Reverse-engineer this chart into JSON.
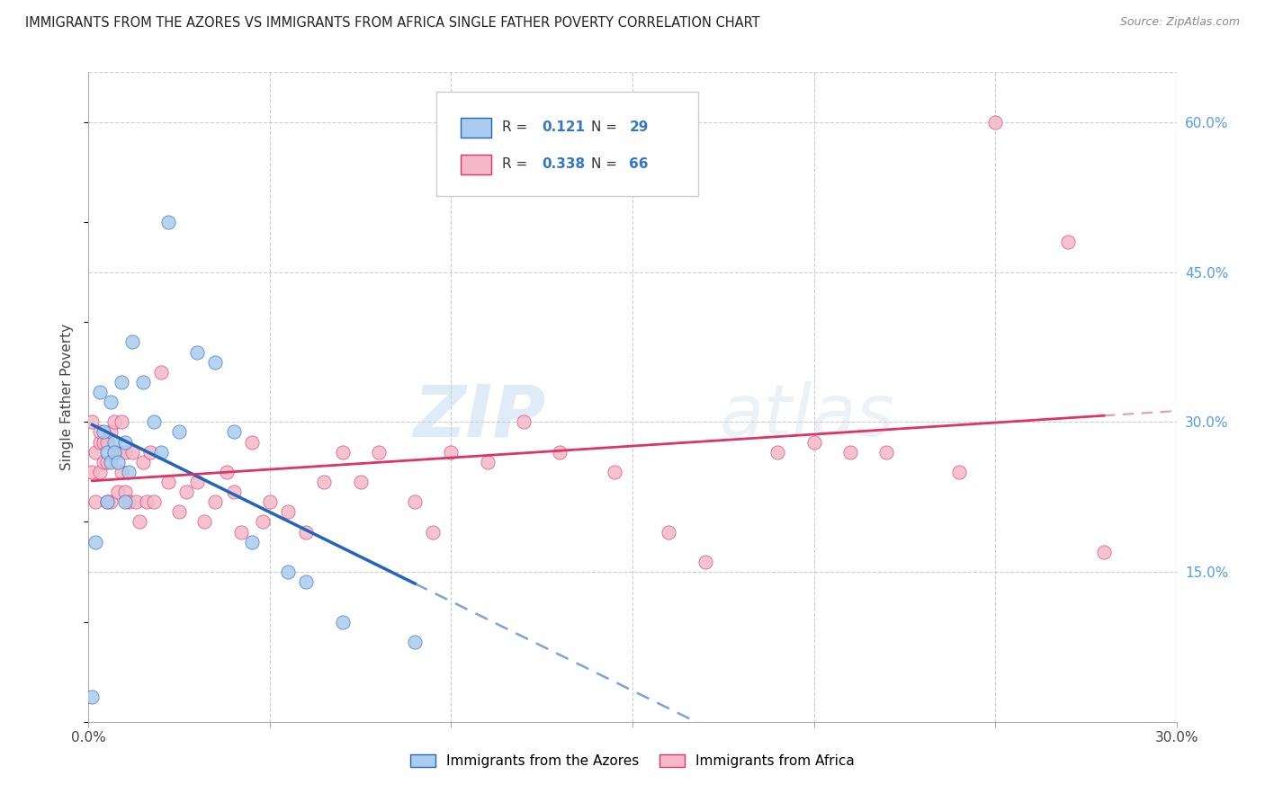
{
  "title": "IMMIGRANTS FROM THE AZORES VS IMMIGRANTS FROM AFRICA SINGLE FATHER POVERTY CORRELATION CHART",
  "source": "Source: ZipAtlas.com",
  "ylabel": "Single Father Poverty",
  "xlim": [
    0.0,
    0.3
  ],
  "ylim": [
    0.0,
    0.65
  ],
  "xticks": [
    0.0,
    0.05,
    0.1,
    0.15,
    0.2,
    0.25,
    0.3
  ],
  "xtick_labels": [
    "0.0%",
    "",
    "",
    "",
    "",
    "",
    "30.0%"
  ],
  "yticks_right": [
    0.15,
    0.3,
    0.45,
    0.6
  ],
  "ytick_labels_right": [
    "15.0%",
    "30.0%",
    "45.0%",
    "60.0%"
  ],
  "azores_scatter_color": "#aaccee",
  "africa_scatter_color": "#f4b8c8",
  "azores_line_color": "#2266bb",
  "africa_line_color": "#dd3366",
  "R_azores": 0.121,
  "N_azores": 29,
  "R_africa": 0.338,
  "N_africa": 66,
  "legend_label_azores": "Immigrants from the Azores",
  "legend_label_africa": "Immigrants from Africa",
  "watermark": "ZIPatlas",
  "azores_x": [
    0.001,
    0.002,
    0.003,
    0.004,
    0.005,
    0.005,
    0.006,
    0.006,
    0.007,
    0.007,
    0.008,
    0.009,
    0.01,
    0.01,
    0.011,
    0.012,
    0.015,
    0.018,
    0.02,
    0.022,
    0.025,
    0.03,
    0.035,
    0.04,
    0.045,
    0.055,
    0.06,
    0.07,
    0.09
  ],
  "azores_y": [
    0.025,
    0.18,
    0.33,
    0.29,
    0.22,
    0.27,
    0.26,
    0.32,
    0.28,
    0.27,
    0.26,
    0.34,
    0.28,
    0.22,
    0.25,
    0.38,
    0.34,
    0.3,
    0.27,
    0.5,
    0.29,
    0.37,
    0.36,
    0.29,
    0.18,
    0.15,
    0.14,
    0.1,
    0.08
  ],
  "africa_x": [
    0.001,
    0.001,
    0.002,
    0.002,
    0.003,
    0.003,
    0.003,
    0.004,
    0.004,
    0.005,
    0.005,
    0.005,
    0.006,
    0.006,
    0.007,
    0.007,
    0.008,
    0.008,
    0.009,
    0.009,
    0.01,
    0.01,
    0.011,
    0.012,
    0.013,
    0.014,
    0.015,
    0.016,
    0.017,
    0.018,
    0.02,
    0.022,
    0.025,
    0.027,
    0.03,
    0.032,
    0.035,
    0.038,
    0.04,
    0.042,
    0.045,
    0.048,
    0.05,
    0.055,
    0.06,
    0.065,
    0.07,
    0.075,
    0.08,
    0.09,
    0.095,
    0.1,
    0.11,
    0.12,
    0.13,
    0.145,
    0.16,
    0.17,
    0.19,
    0.2,
    0.21,
    0.22,
    0.24,
    0.25,
    0.27,
    0.28
  ],
  "africa_y": [
    0.25,
    0.3,
    0.22,
    0.27,
    0.25,
    0.28,
    0.29,
    0.26,
    0.28,
    0.22,
    0.28,
    0.26,
    0.22,
    0.29,
    0.27,
    0.3,
    0.23,
    0.27,
    0.25,
    0.3,
    0.27,
    0.23,
    0.22,
    0.27,
    0.22,
    0.2,
    0.26,
    0.22,
    0.27,
    0.22,
    0.35,
    0.24,
    0.21,
    0.23,
    0.24,
    0.2,
    0.22,
    0.25,
    0.23,
    0.19,
    0.28,
    0.2,
    0.22,
    0.21,
    0.19,
    0.24,
    0.27,
    0.24,
    0.27,
    0.22,
    0.19,
    0.27,
    0.26,
    0.3,
    0.27,
    0.25,
    0.19,
    0.16,
    0.27,
    0.28,
    0.27,
    0.27,
    0.25,
    0.6,
    0.48,
    0.17
  ]
}
